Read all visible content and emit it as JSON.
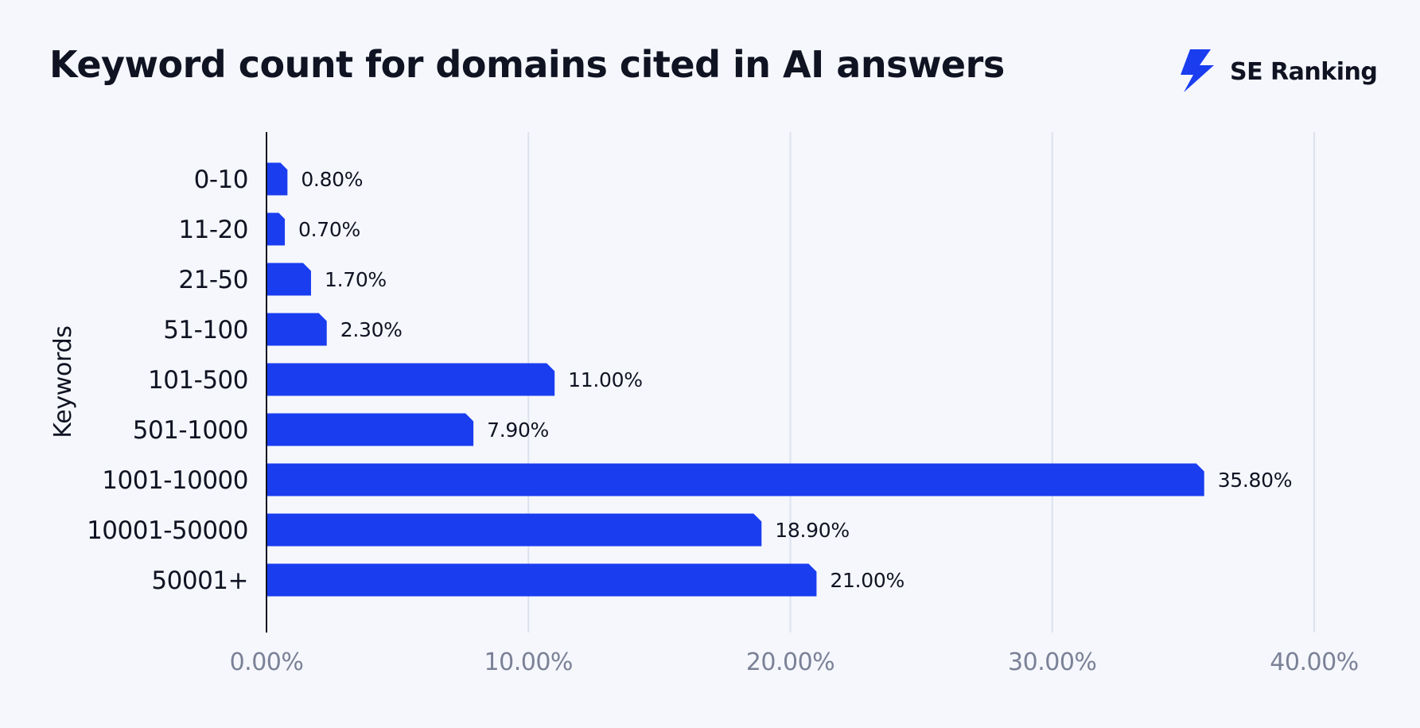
{
  "chart_data": {
    "type": "bar",
    "orientation": "horizontal",
    "title": "Keyword count for domains cited in AI answers",
    "ylabel": "Keywords",
    "xlabel": "",
    "categories": [
      "0-10",
      "11-20",
      "21-50",
      "51-100",
      "101-500",
      "501-1000",
      "1001-10000",
      "10001-50000",
      "50001+"
    ],
    "values": [
      0.8,
      0.7,
      1.7,
      2.3,
      11.0,
      7.9,
      35.8,
      18.9,
      21.0
    ],
    "value_labels": [
      "0.80%",
      "0.70%",
      "1.70%",
      "2.30%",
      "11.00%",
      "7.90%",
      "35.80%",
      "18.90%",
      "21.00%"
    ],
    "xlim": [
      0,
      40
    ],
    "x_ticks": [
      0,
      10,
      20,
      30,
      40
    ],
    "x_tick_labels": [
      "0.00%",
      "10.00%",
      "20.00%",
      "30.00%",
      "40.00%"
    ],
    "grid": "vertical",
    "legend": "none",
    "bar_color": "#1a3df0",
    "grid_color": "#dde2ee",
    "tick_label_color": "#7b8197"
  },
  "brand": {
    "name": "SE Ranking",
    "icon": "se-ranking-lightning-logo-icon",
    "icon_color": "#1a3df0"
  }
}
